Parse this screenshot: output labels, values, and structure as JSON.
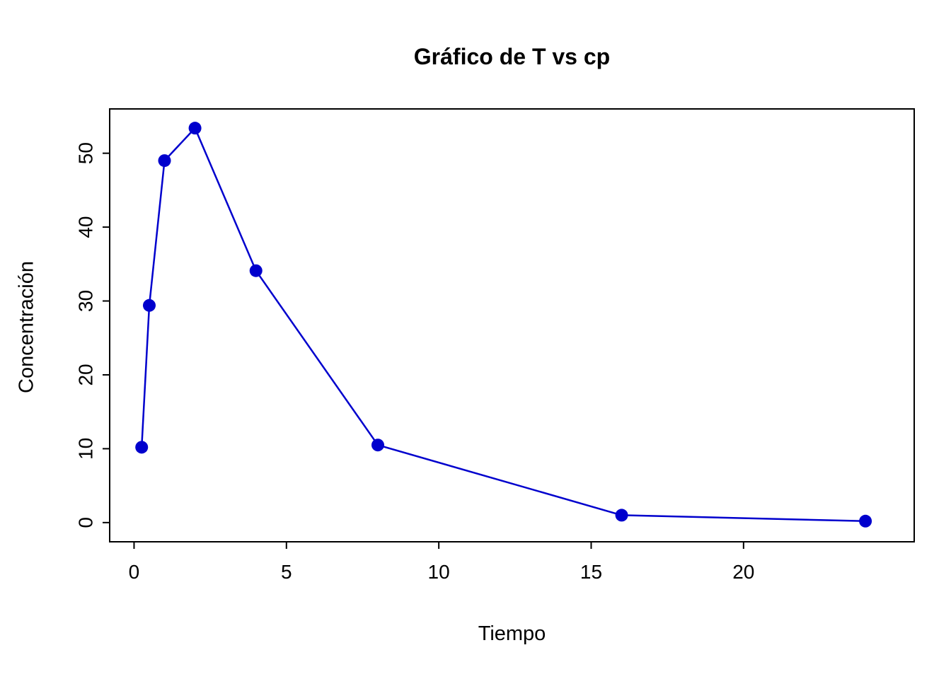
{
  "chart_data": {
    "type": "line",
    "title": "Gráfico de T vs cp",
    "xlabel": "Tiempo",
    "ylabel": "Concentración",
    "x": [
      0.25,
      0.5,
      1,
      2,
      4,
      8,
      16,
      24
    ],
    "y": [
      10.2,
      29.4,
      49.0,
      53.4,
      34.1,
      10.5,
      1.0,
      0.2
    ],
    "xlim": [
      -0.8,
      25.6
    ],
    "ylim": [
      -2.6,
      56
    ],
    "x_ticks": [
      0,
      5,
      10,
      15,
      20
    ],
    "y_ticks": [
      0,
      10,
      20,
      30,
      40,
      50
    ],
    "grid": false,
    "legend": null,
    "marker": "filled-circle",
    "point_color": "#0000CD",
    "line_color": "#0000CD",
    "axis_color": "#000000",
    "background_color": "#FFFFFF"
  }
}
